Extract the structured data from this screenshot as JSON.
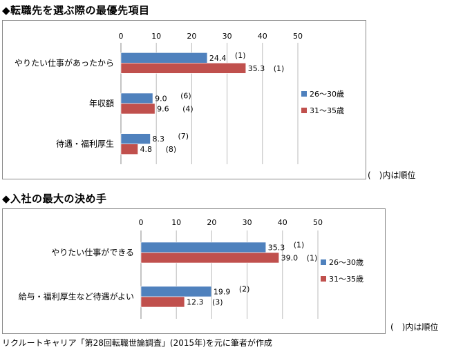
{
  "chart_data": [
    {
      "type": "bar",
      "orientation": "horizontal",
      "title": "◆転職先を選ぶ際の最優先項目",
      "categories": [
        "やりたい仕事があったから",
        "年収額",
        "待遇・福利厚生"
      ],
      "series": [
        {
          "name": "26～30歳",
          "color": "#4f81bd",
          "values": [
            24.4,
            9.0,
            8.3
          ],
          "ranks": [
            "(1)",
            "(6)",
            "(7)"
          ]
        },
        {
          "name": "31～35歳",
          "color": "#c0504d",
          "values": [
            35.3,
            9.6,
            4.8
          ],
          "ranks": [
            "(1)",
            "(4)",
            "(8)"
          ]
        }
      ],
      "xlim": [
        0,
        50
      ],
      "xticks": [
        0,
        10,
        20,
        30,
        40,
        50
      ],
      "grid": true,
      "legend": "right",
      "note": "(　)内は順位"
    },
    {
      "type": "bar",
      "orientation": "horizontal",
      "title": "◆入社の最大の決め手",
      "categories": [
        "やりたい仕事ができる",
        "給与・福利厚生など待遇がよい"
      ],
      "series": [
        {
          "name": "26～30歳",
          "color": "#4f81bd",
          "values": [
            35.3,
            19.9
          ],
          "ranks": [
            "(1)",
            "(2)"
          ]
        },
        {
          "name": "31～35歳",
          "color": "#c0504d",
          "values": [
            39.0,
            12.3
          ],
          "ranks": [
            "(1)",
            "(3)"
          ]
        }
      ],
      "xlim": [
        0,
        50
      ],
      "xticks": [
        0,
        10,
        20,
        30,
        40,
        50
      ],
      "grid": true,
      "legend": "right",
      "note": "(　)内は順位"
    }
  ],
  "source": "リクルートキャリア「第28回転職世論調査」(2015年)を元に筆者が作成"
}
